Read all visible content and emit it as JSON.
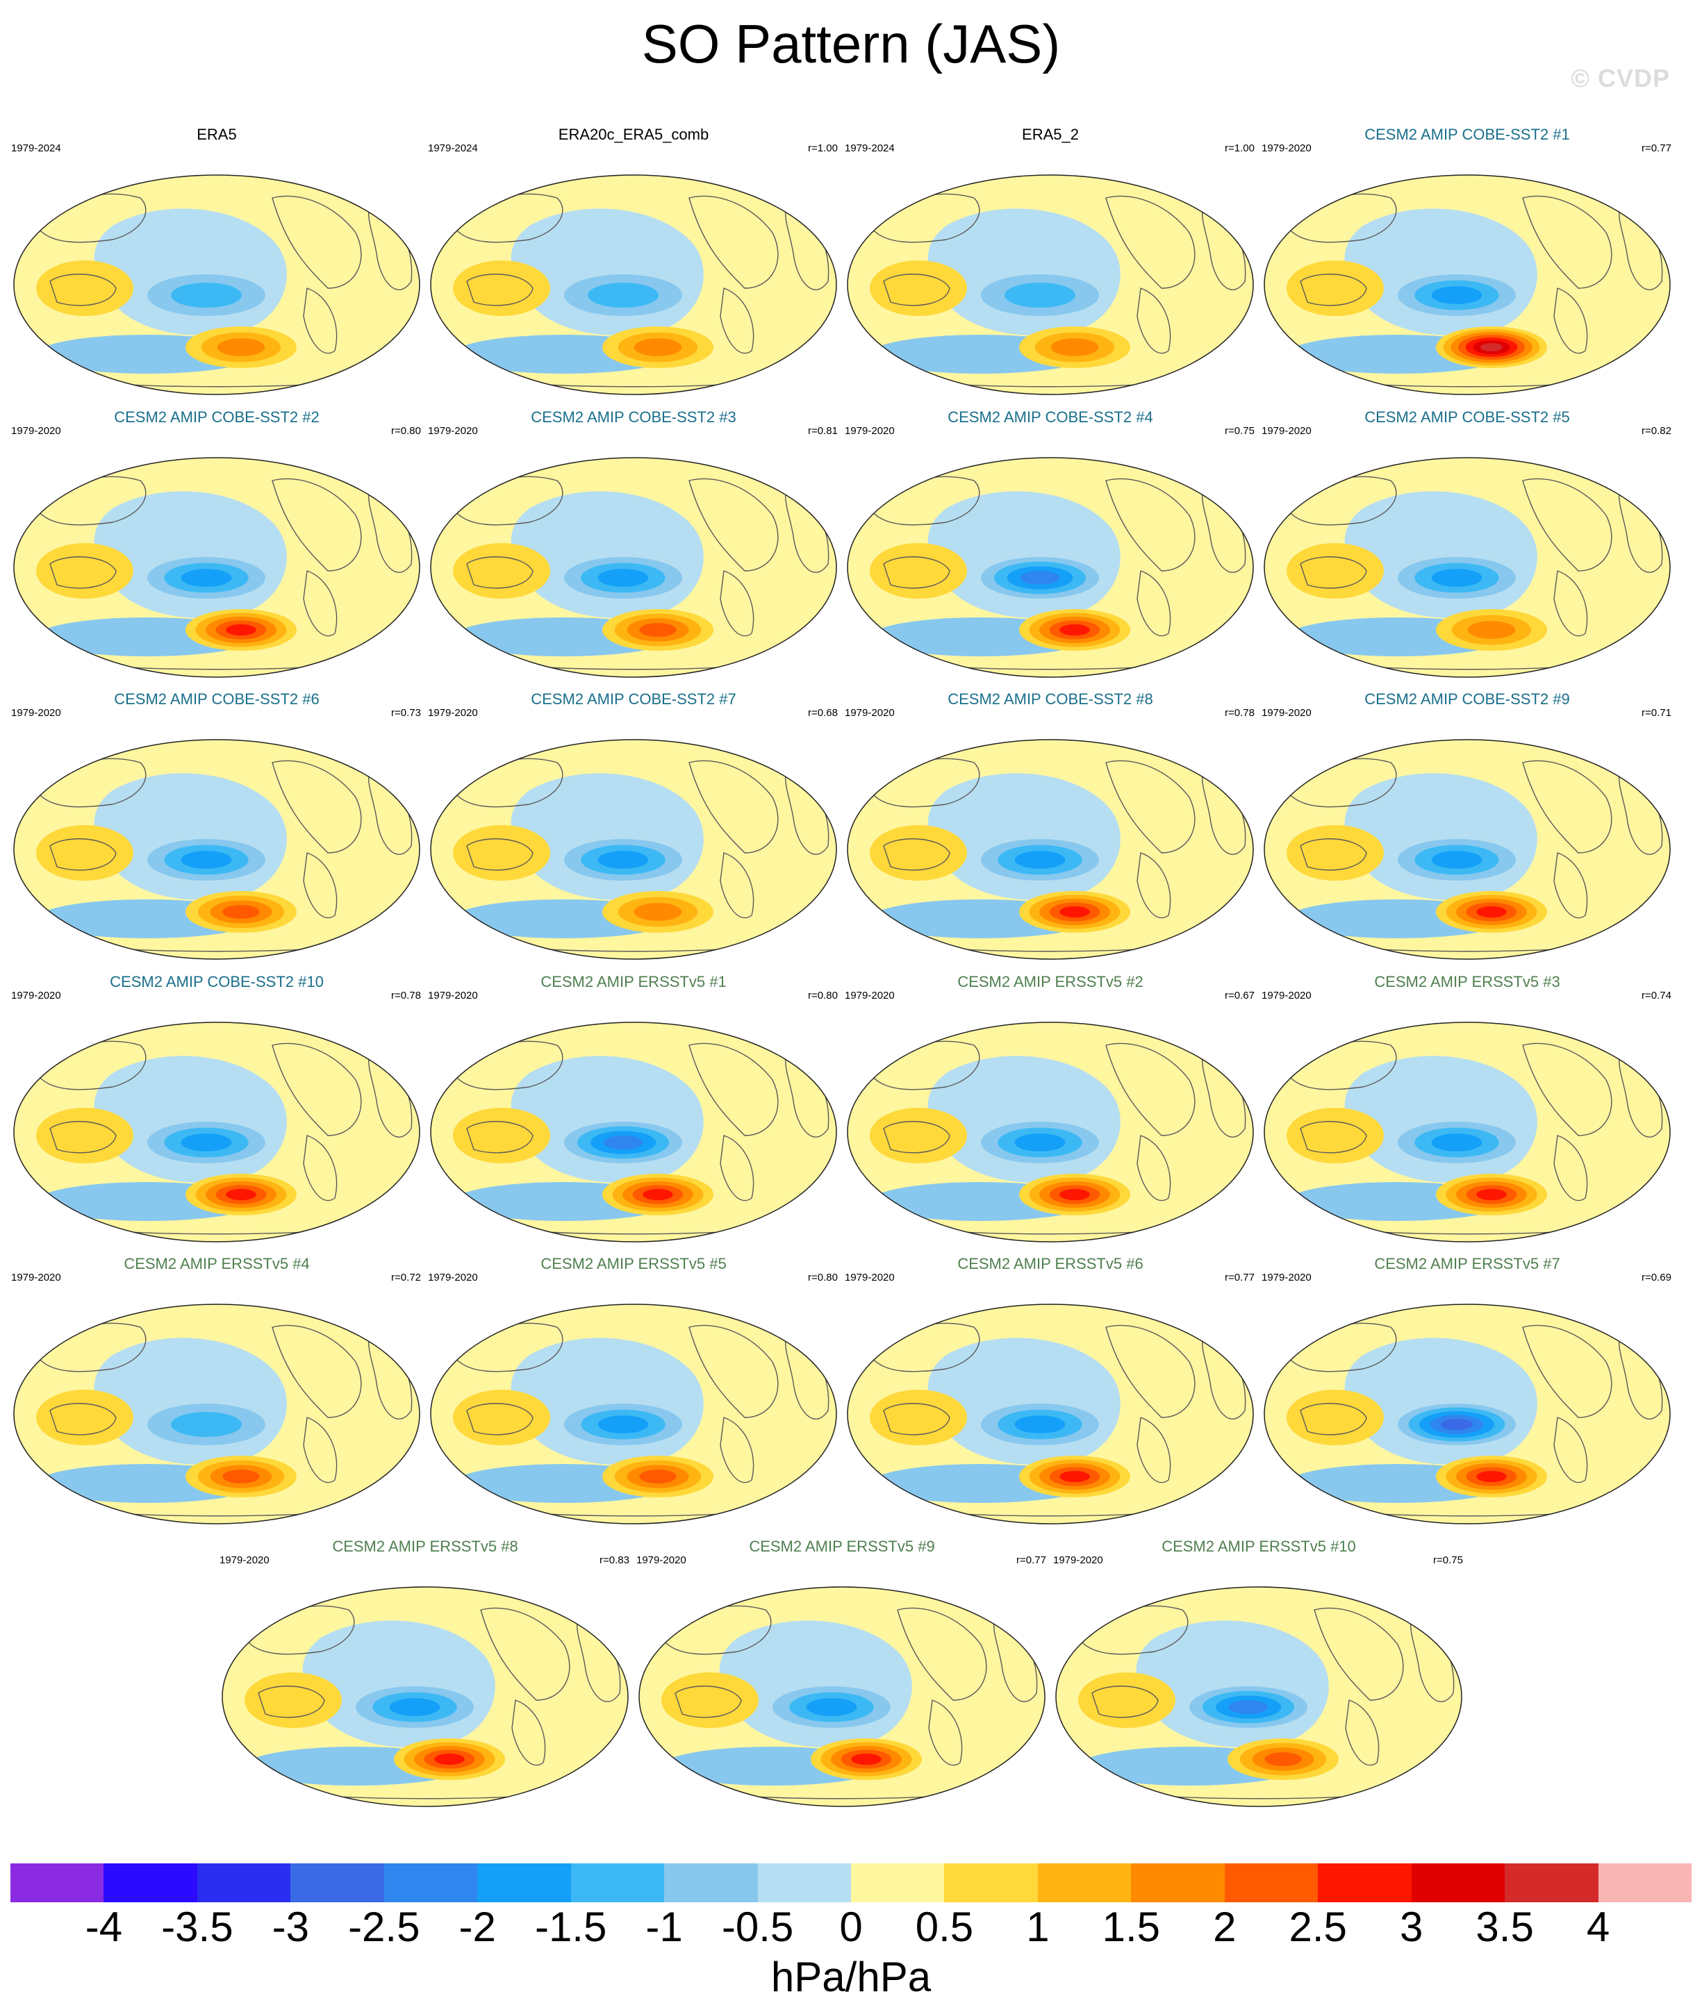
{
  "title": "SO Pattern (JAS)",
  "watermark": "© CVDP",
  "colors": {
    "land_outline": "#5a5a5a",
    "cobe_title": "#1a6f8c",
    "ersst_title": "#4f7f4f"
  },
  "panels": [
    {
      "title": "ERA5",
      "period": "1979-2024",
      "r": "",
      "group": "obs",
      "pos_max": 2.0,
      "neg_min": -1.5
    },
    {
      "title": "ERA20c_ERA5_comb",
      "period": "1979-2024",
      "r": "r=1.00",
      "group": "obs",
      "pos_max": 2.0,
      "neg_min": -1.5
    },
    {
      "title": "ERA5_2",
      "period": "1979-2024",
      "r": "r=1.00",
      "group": "obs",
      "pos_max": 2.0,
      "neg_min": -1.5
    },
    {
      "title": "CESM2 AMIP COBE-SST2 #1",
      "period": "1979-2020",
      "r": "r=0.77",
      "group": "cobe",
      "pos_max": 4.0,
      "neg_min": -2.0
    },
    {
      "title": "CESM2 AMIP COBE-SST2 #2",
      "period": "1979-2020",
      "r": "r=0.80",
      "group": "cobe",
      "pos_max": 3.0,
      "neg_min": -2.0
    },
    {
      "title": "CESM2 AMIP COBE-SST2 #3",
      "period": "1979-2020",
      "r": "r=0.81",
      "group": "cobe",
      "pos_max": 2.5,
      "neg_min": -2.0
    },
    {
      "title": "CESM2 AMIP COBE-SST2 #4",
      "period": "1979-2020",
      "r": "r=0.75",
      "group": "cobe",
      "pos_max": 3.0,
      "neg_min": -2.5
    },
    {
      "title": "CESM2 AMIP COBE-SST2 #5",
      "period": "1979-2020",
      "r": "r=0.82",
      "group": "cobe",
      "pos_max": 2.0,
      "neg_min": -2.0
    },
    {
      "title": "CESM2 AMIP COBE-SST2 #6",
      "period": "1979-2020",
      "r": "r=0.73",
      "group": "cobe",
      "pos_max": 2.5,
      "neg_min": -2.0
    },
    {
      "title": "CESM2 AMIP COBE-SST2 #7",
      "period": "1979-2020",
      "r": "r=0.68",
      "group": "cobe",
      "pos_max": 2.0,
      "neg_min": -2.0
    },
    {
      "title": "CESM2 AMIP COBE-SST2 #8",
      "period": "1979-2020",
      "r": "r=0.78",
      "group": "cobe",
      "pos_max": 3.0,
      "neg_min": -2.0
    },
    {
      "title": "CESM2 AMIP COBE-SST2 #9",
      "period": "1979-2020",
      "r": "r=0.71",
      "group": "cobe",
      "pos_max": 3.0,
      "neg_min": -2.0
    },
    {
      "title": "CESM2 AMIP COBE-SST2 #10",
      "period": "1979-2020",
      "r": "r=0.78",
      "group": "cobe",
      "pos_max": 3.0,
      "neg_min": -2.0
    },
    {
      "title": "CESM2 AMIP ERSSTv5 #1",
      "period": "1979-2020",
      "r": "r=0.80",
      "group": "ersst",
      "pos_max": 3.0,
      "neg_min": -2.5
    },
    {
      "title": "CESM2 AMIP ERSSTv5 #2",
      "period": "1979-2020",
      "r": "r=0.67",
      "group": "ersst",
      "pos_max": 3.0,
      "neg_min": -2.0
    },
    {
      "title": "CESM2 AMIP ERSSTv5 #3",
      "period": "1979-2020",
      "r": "r=0.74",
      "group": "ersst",
      "pos_max": 3.0,
      "neg_min": -2.0
    },
    {
      "title": "CESM2 AMIP ERSSTv5 #4",
      "period": "1979-2020",
      "r": "r=0.72",
      "group": "ersst",
      "pos_max": 2.5,
      "neg_min": -1.5
    },
    {
      "title": "CESM2 AMIP ERSSTv5 #5",
      "period": "1979-2020",
      "r": "r=0.80",
      "group": "ersst",
      "pos_max": 2.5,
      "neg_min": -2.0
    },
    {
      "title": "CESM2 AMIP ERSSTv5 #6",
      "period": "1979-2020",
      "r": "r=0.77",
      "group": "ersst",
      "pos_max": 3.0,
      "neg_min": -2.0
    },
    {
      "title": "CESM2 AMIP ERSSTv5 #7",
      "period": "1979-2020",
      "r": "r=0.69",
      "group": "ersst",
      "pos_max": 3.0,
      "neg_min": -3.0
    },
    {
      "title": "CESM2 AMIP ERSSTv5 #8",
      "period": "1979-2020",
      "r": "r=0.83",
      "group": "ersst",
      "pos_max": 3.0,
      "neg_min": -2.0
    },
    {
      "title": "CESM2 AMIP ERSSTv5 #9",
      "period": "1979-2020",
      "r": "r=0.77",
      "group": "ersst",
      "pos_max": 3.0,
      "neg_min": -2.0
    },
    {
      "title": "CESM2 AMIP ERSSTv5 #10",
      "period": "1979-2020",
      "r": "r=0.75",
      "group": "ersst",
      "pos_max": 2.5,
      "neg_min": -2.5
    }
  ],
  "colorbar": {
    "colors": [
      "#8a2be2",
      "#2a0bff",
      "#2a2ef0",
      "#3a6ae6",
      "#2f86ee",
      "#14a0f8",
      "#3cb9f4",
      "#88c8ee",
      "#b6def2",
      "#fff6a0",
      "#ffd83a",
      "#ffb412",
      "#ff8a00",
      "#ff5a00",
      "#ff1600",
      "#e00000",
      "#d42a2a",
      "#f9b4b4"
    ],
    "ticks": [
      "-4",
      "-3.5",
      "-3",
      "-2.5",
      "-2",
      "-1.5",
      "-1",
      "-0.5",
      "0",
      "0.5",
      "1",
      "1.5",
      "2",
      "2.5",
      "3",
      "3.5",
      "4"
    ],
    "units": "hPa/hPa"
  }
}
